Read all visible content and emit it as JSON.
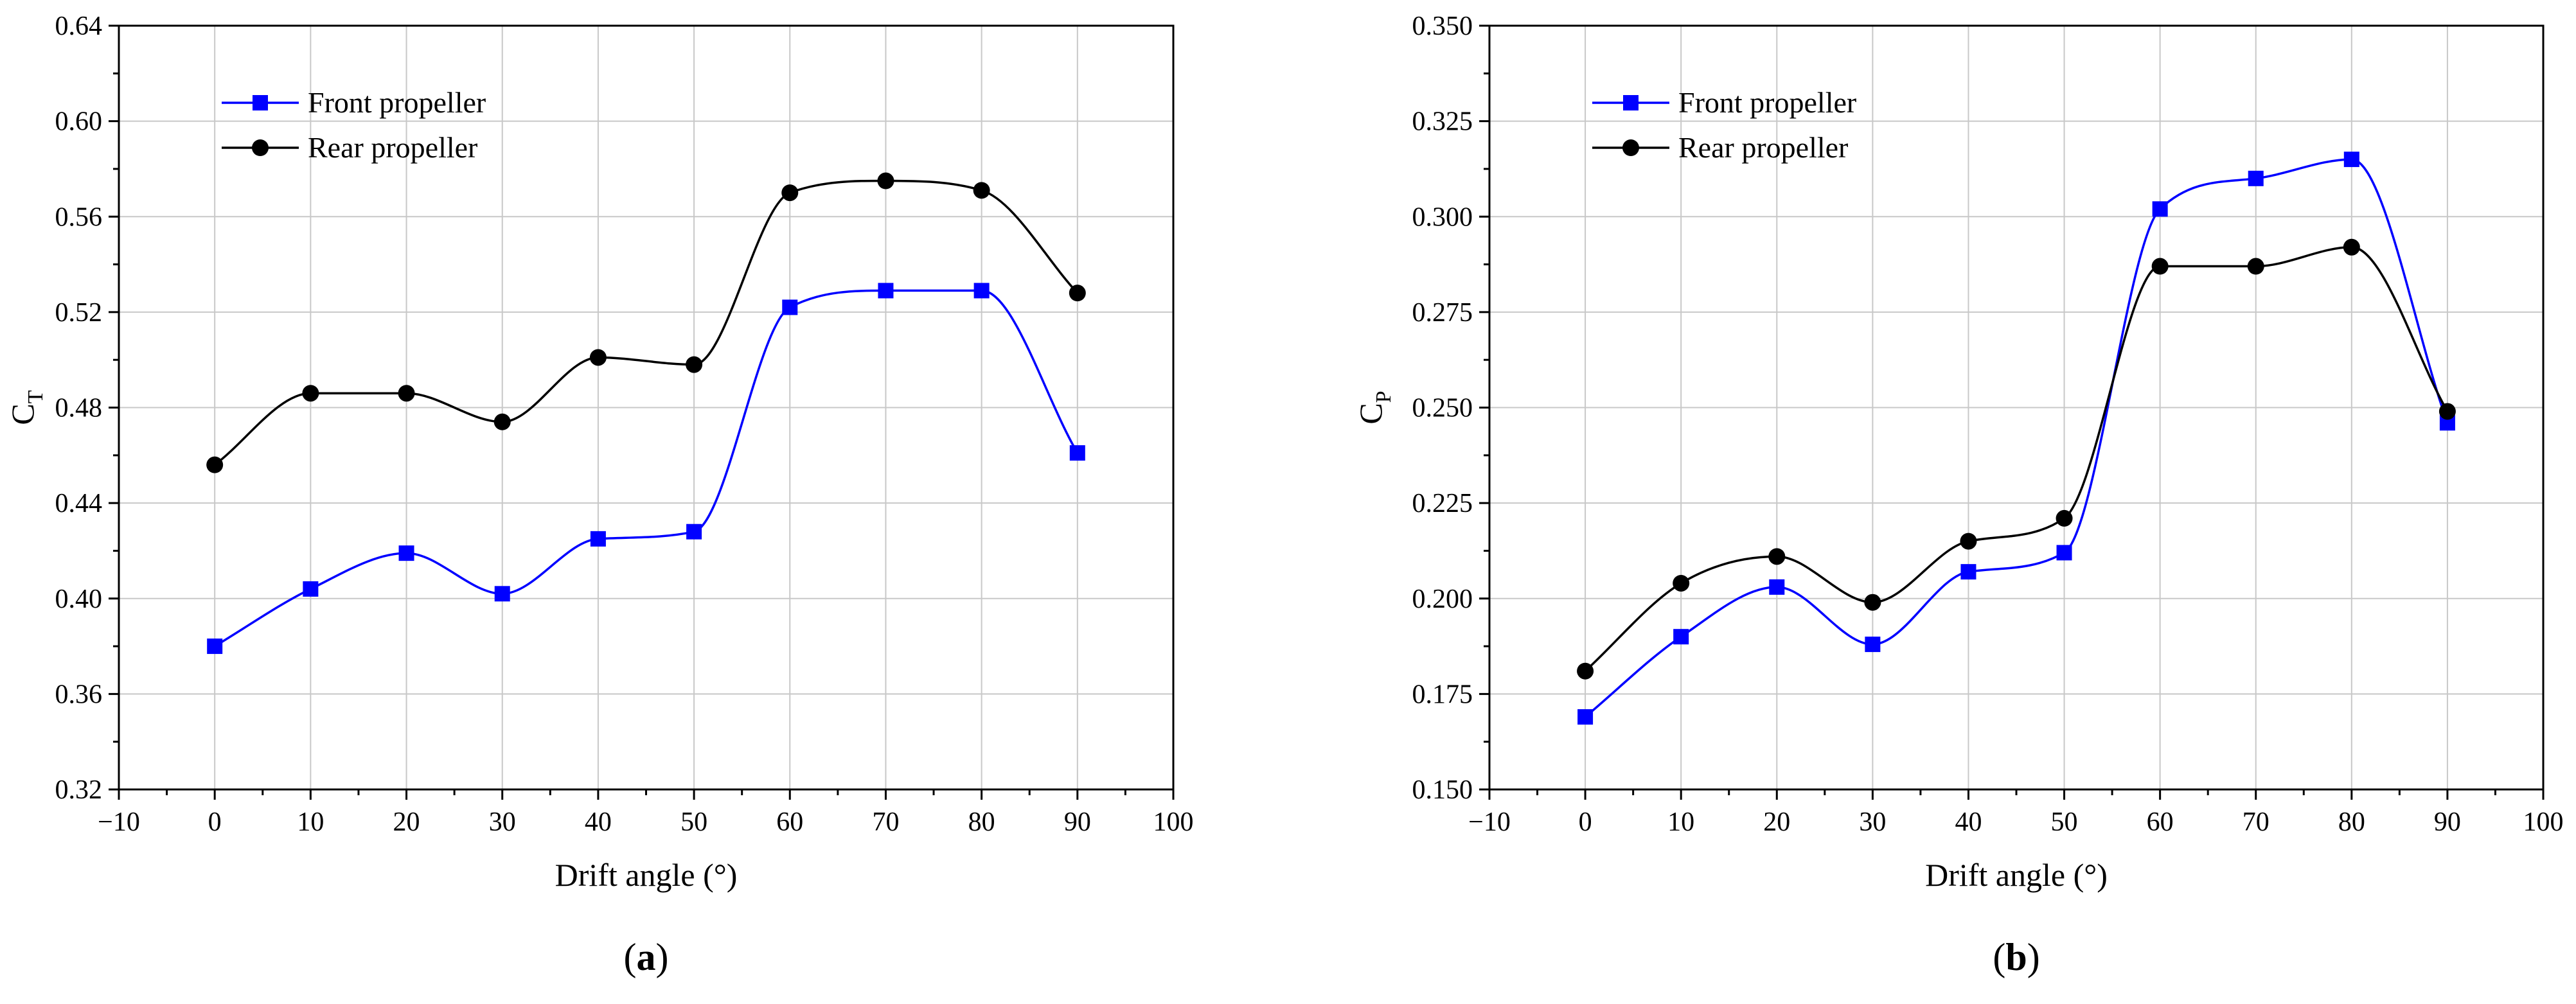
{
  "chart_data": [
    {
      "type": "line",
      "panel_label": "a",
      "xlabel": "Drift angle (°)",
      "ylabel_main": "C",
      "ylabel_sub": "T",
      "xlim": [
        -10,
        100
      ],
      "ylim": [
        0.32,
        0.64
      ],
      "xticks": [
        -10,
        0,
        10,
        20,
        30,
        40,
        50,
        60,
        70,
        80,
        90,
        100
      ],
      "yticks": [
        0.32,
        0.36,
        0.4,
        0.44,
        0.48,
        0.52,
        0.56,
        0.6,
        0.64
      ],
      "ytick_decimals": 2,
      "grid": true,
      "legend_position": "top-left",
      "x": [
        0,
        10,
        20,
        30,
        40,
        50,
        60,
        70,
        80,
        90
      ],
      "series": [
        {
          "name": "Front propeller",
          "color": "#0000ff",
          "marker": "square",
          "values": [
            0.38,
            0.404,
            0.419,
            0.402,
            0.425,
            0.428,
            0.522,
            0.529,
            0.529,
            0.461
          ]
        },
        {
          "name": "Rear propeller",
          "color": "#000000",
          "marker": "circle",
          "values": [
            0.456,
            0.486,
            0.486,
            0.474,
            0.501,
            0.498,
            0.57,
            0.575,
            0.571,
            0.528
          ]
        }
      ]
    },
    {
      "type": "line",
      "panel_label": "b",
      "xlabel": "Drift angle (°)",
      "ylabel_main": "C",
      "ylabel_sub": "P",
      "xlim": [
        -10,
        100
      ],
      "ylim": [
        0.15,
        0.35
      ],
      "xticks": [
        -10,
        0,
        10,
        20,
        30,
        40,
        50,
        60,
        70,
        80,
        90,
        100
      ],
      "yticks": [
        0.15,
        0.175,
        0.2,
        0.225,
        0.25,
        0.275,
        0.3,
        0.325,
        0.35
      ],
      "ytick_decimals": 3,
      "grid": true,
      "legend_position": "top-left",
      "x": [
        0,
        10,
        20,
        30,
        40,
        50,
        60,
        70,
        80,
        90
      ],
      "series": [
        {
          "name": "Front propeller",
          "color": "#0000ff",
          "marker": "square",
          "values": [
            0.169,
            0.19,
            0.203,
            0.188,
            0.207,
            0.212,
            0.302,
            0.31,
            0.315,
            0.246
          ]
        },
        {
          "name": "Rear propeller",
          "color": "#000000",
          "marker": "circle",
          "values": [
            0.181,
            0.204,
            0.211,
            0.199,
            0.215,
            0.221,
            0.287,
            0.287,
            0.292,
            0.249
          ]
        }
      ]
    }
  ]
}
